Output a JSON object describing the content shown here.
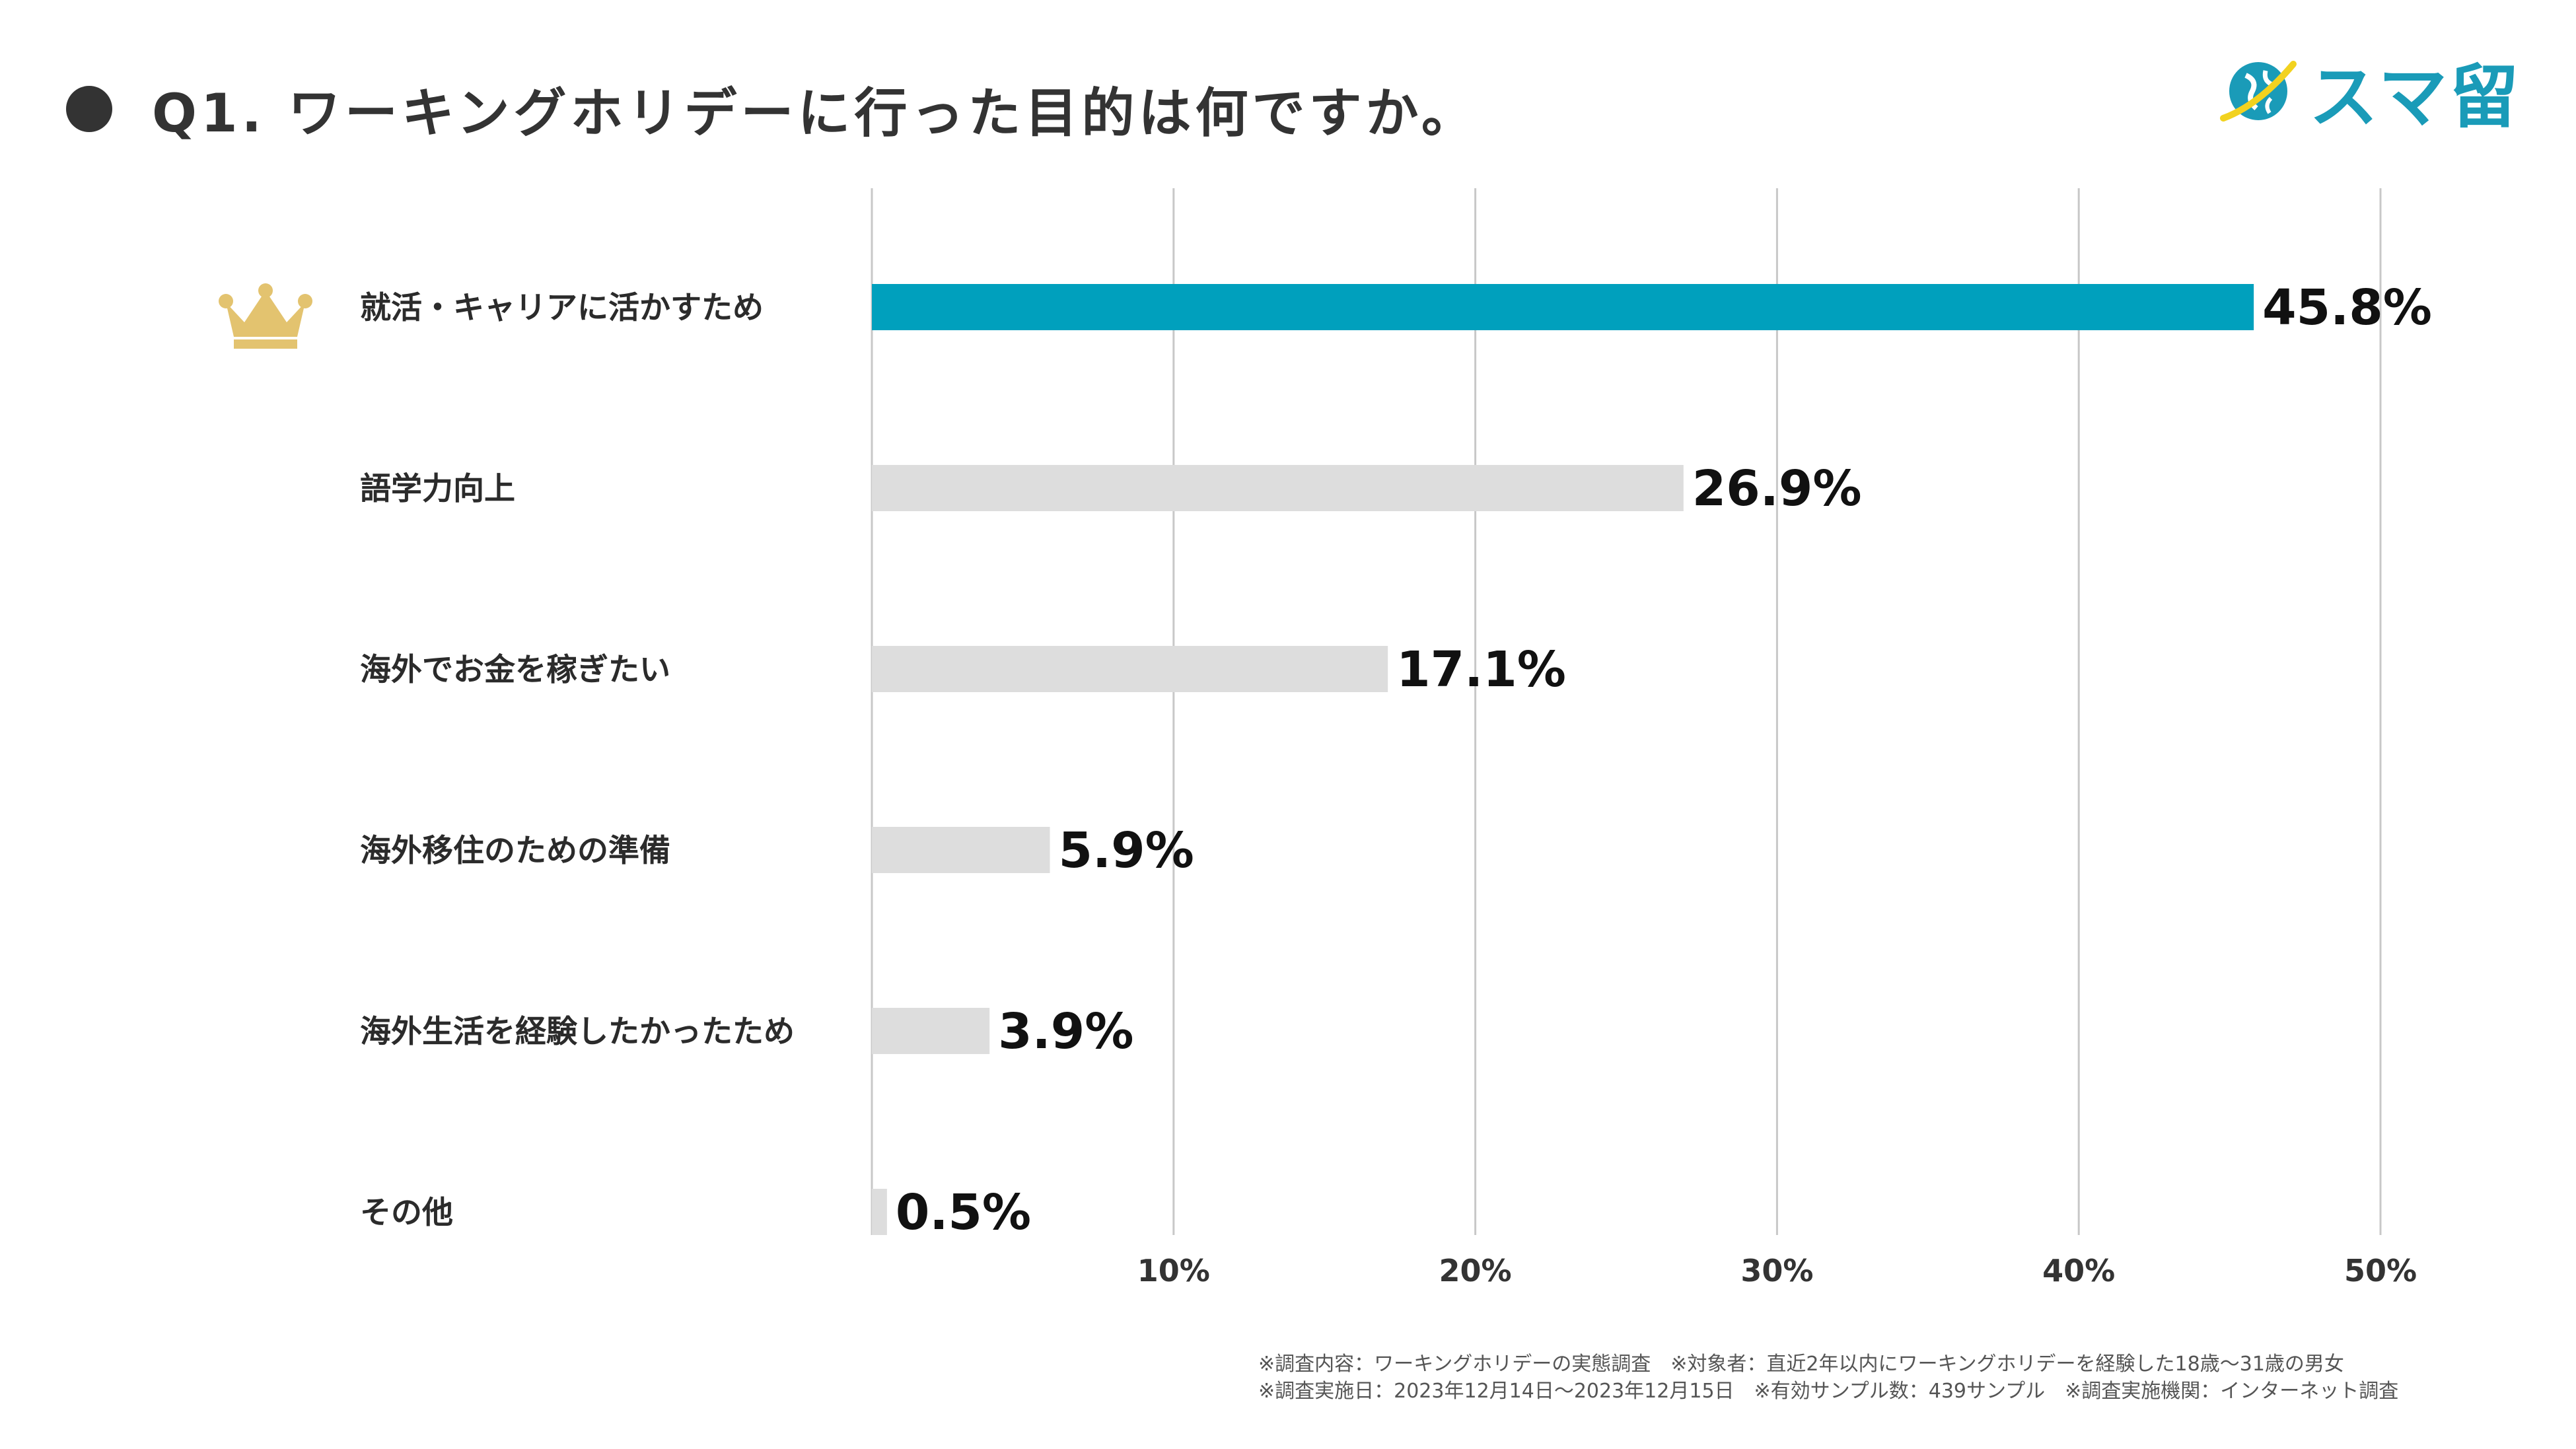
{
  "title": "Q1. ワーキングホリデーに行った目的は何ですか。",
  "logo": {
    "text": "スマ留",
    "brand_color": "#1a9bb8",
    "accent_color": "#f2d21f",
    "icon": "globe-icon"
  },
  "rank_icon": "crown-icon",
  "chart_data": {
    "type": "bar",
    "orientation": "horizontal",
    "title": "Q1. ワーキングホリデーに行った目的は何ですか。",
    "categories": [
      "就活・キャリアに活かすため",
      "語学力向上",
      "海外でお金を稼ぎたい",
      "海外移住のための準備",
      "海外生活を経験したかったため",
      "その他"
    ],
    "values": [
      45.8,
      26.9,
      17.1,
      5.9,
      3.9,
      0.5
    ],
    "value_labels": [
      "45.8%",
      "26.9%",
      "17.1%",
      "5.9%",
      "3.9%",
      "0.5%"
    ],
    "unit": "%",
    "xlim": [
      0,
      50
    ],
    "xticks": [
      10,
      20,
      30,
      40,
      50
    ],
    "xtick_labels": [
      "10%",
      "20%",
      "30%",
      "40%",
      "50%"
    ],
    "grid": true,
    "highlight_index": 0,
    "highlight_color": "#00a0bd",
    "bar_color": "#dddddd"
  },
  "footnotes": [
    "※調査内容：ワーキングホリデーの実態調査　※対象者：直近2年以内にワーキングホリデーを経験した18歳〜31歳の男女",
    "※調査実施日：2023年12月14日〜2023年12月15日　※有効サンプル数：439サンプル　※調査実施機関：インターネット調査"
  ]
}
